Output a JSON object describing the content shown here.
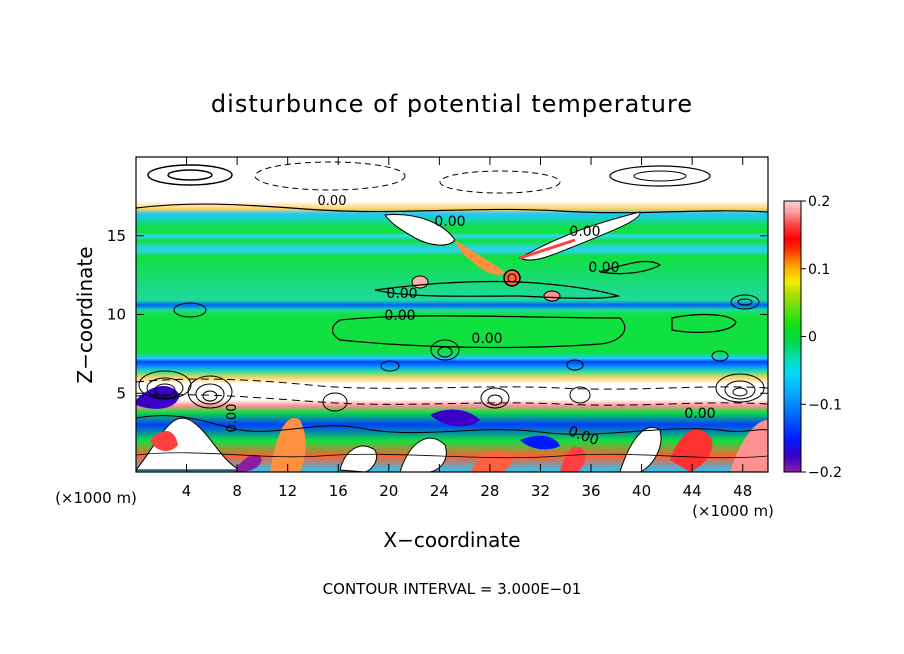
{
  "chart_data": {
    "type": "heatmap",
    "title": "disturbunce of potential temperature",
    "xlabel": "X−coordinate",
    "ylabel": "Z−coordinate",
    "x_unit": "(×1000 m)",
    "y_unit": "(×1000 m)",
    "xlim": [
      0,
      50
    ],
    "ylim": [
      0,
      20
    ],
    "x_ticks": [
      "4",
      "8",
      "12",
      "16",
      "20",
      "24",
      "28",
      "32",
      "36",
      "40",
      "44",
      "48"
    ],
    "x_tick_values": [
      4,
      8,
      12,
      16,
      20,
      24,
      28,
      32,
      36,
      40,
      44,
      48
    ],
    "y_ticks": [
      "5",
      "10",
      "15"
    ],
    "y_tick_values": [
      5,
      10,
      15
    ],
    "colorbar": {
      "range": [
        -0.2,
        0.2
      ],
      "tick_labels": [
        "0.2",
        "0.1",
        "0",
        "−0.1",
        "−0.2"
      ],
      "tick_values": [
        0.2,
        0.1,
        0,
        -0.1,
        -0.2
      ],
      "colors": [
        "#8a1ea0",
        "#3a00c8",
        "#0018ff",
        "#0060ff",
        "#0aa0ff",
        "#00d8ff",
        "#00e0b0",
        "#00d850",
        "#10e010",
        "#60e010",
        "#b0e000",
        "#f0f000",
        "#ffc000",
        "#ff8000",
        "#ff3000",
        "#ff0000",
        "#ff5050",
        "#ffa0a0",
        "#ffd0d0"
      ]
    },
    "contour_labels": [
      "0.00",
      "0.00",
      "0.00",
      "0.00",
      "0.00",
      "0.00",
      "0.00",
      "0.00",
      "0.00",
      "0.00"
    ],
    "footer": "CONTOUR INTERVAL = 3.000E−01"
  }
}
